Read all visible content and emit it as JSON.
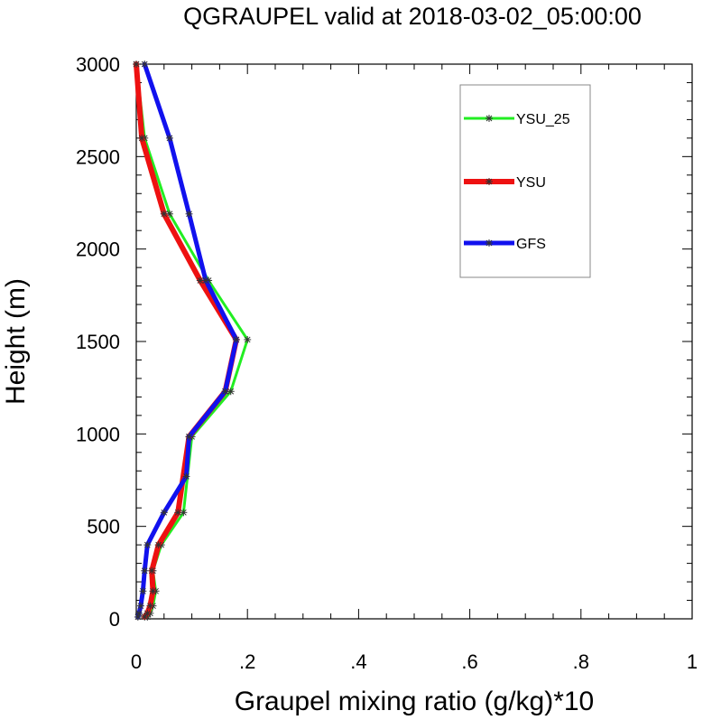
{
  "chart_data": {
    "type": "line",
    "title": "QGRAUPEL valid at 2018-03-02_05:00:00",
    "xlabel": "Graupel mixing ratio (g/kg)*10",
    "ylabel": "Height (m)",
    "xlim": [
      0,
      1
    ],
    "ylim": [
      0,
      3000
    ],
    "x_ticks": [
      0,
      0.2,
      0.4,
      0.6,
      0.8,
      1.0
    ],
    "x_tick_labels": [
      "0",
      ".2",
      ".4",
      ".6",
      ".8",
      "1"
    ],
    "y_ticks": [
      0,
      500,
      1000,
      1500,
      2000,
      2500,
      3000
    ],
    "y_tick_labels": [
      "0",
      "500",
      "1000",
      "1500",
      "2000",
      "2500",
      "3000"
    ],
    "grid": false,
    "legend_position": "top-right",
    "series": [
      {
        "name": "YSU_25",
        "color": "#22ee22",
        "x": [
          0.02,
          0.025,
          0.03,
          0.035,
          0.03,
          0.045,
          0.085,
          0.1,
          0.17,
          0.2,
          0.13,
          0.06,
          0.015,
          0.0
        ],
        "y": [
          10,
          30,
          70,
          150,
          260,
          400,
          575,
          985,
          1230,
          1510,
          1830,
          2190,
          2600,
          3000
        ]
      },
      {
        "name": "YSU",
        "color": "#ee1111",
        "x": [
          0.015,
          0.02,
          0.025,
          0.03,
          0.028,
          0.04,
          0.075,
          0.095,
          0.16,
          0.18,
          0.115,
          0.05,
          0.01,
          0.0
        ],
        "y": [
          10,
          30,
          70,
          150,
          260,
          400,
          575,
          985,
          1230,
          1510,
          1830,
          2190,
          2600,
          3000
        ]
      },
      {
        "name": "GFS",
        "color": "#1111ee",
        "x": [
          0.003,
          0.005,
          0.008,
          0.012,
          0.015,
          0.02,
          0.05,
          0.09,
          0.095,
          0.16,
          0.18,
          0.125,
          0.095,
          0.06,
          0.015
        ],
        "y": [
          10,
          30,
          70,
          150,
          260,
          400,
          575,
          770,
          985,
          1230,
          1510,
          1830,
          2190,
          2600,
          3000
        ]
      }
    ]
  }
}
